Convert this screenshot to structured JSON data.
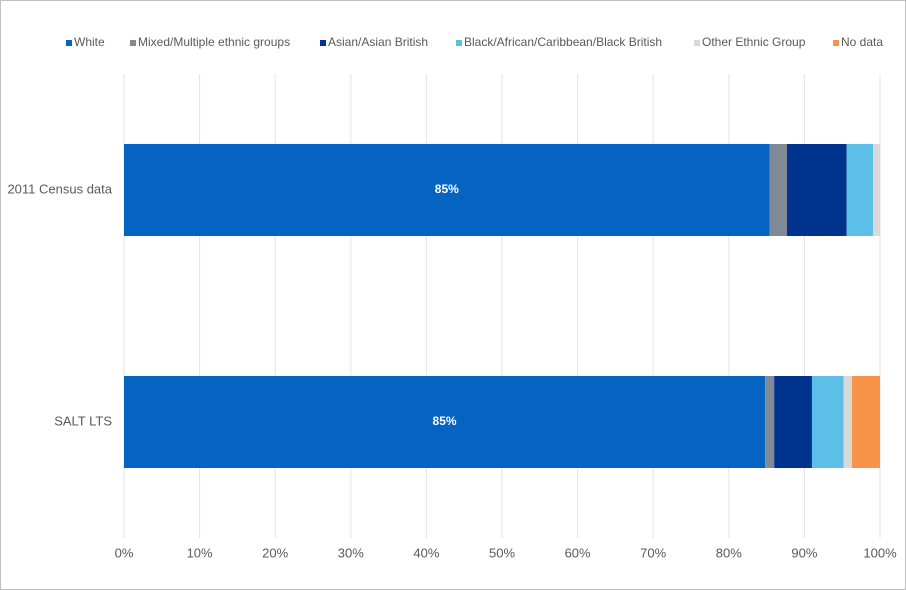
{
  "chart_data": {
    "type": "stacked-bar-horizontal",
    "categories": [
      "2011 Census data",
      "SALT LTS"
    ],
    "series": [
      {
        "name": "White",
        "color": "#0563c1",
        "values": [
          85.4,
          84.8
        ],
        "value_labels": [
          "85%",
          "85%"
        ]
      },
      {
        "name": "Mixed/Multiple ethnic groups",
        "color": "#7f8a96",
        "values": [
          2.3,
          1.2
        ]
      },
      {
        "name": "Asian/Asian British",
        "color": "#00338d",
        "values": [
          7.9,
          5.0
        ]
      },
      {
        "name": "Black/African/Caribbean/Black British",
        "color": "#5bbfe8",
        "values": [
          3.5,
          4.2
        ]
      },
      {
        "name": "Other Ethnic Group",
        "color": "#d9d9d9",
        "values": [
          0.9,
          1.1
        ]
      },
      {
        "name": "No data",
        "color": "#f7944a",
        "values": [
          0,
          3.7
        ]
      }
    ],
    "xlim": [
      0,
      100
    ],
    "xticks": [
      {
        "value": 0,
        "label": "0%"
      },
      {
        "value": 10,
        "label": "10%"
      },
      {
        "value": 20,
        "label": "20%"
      },
      {
        "value": 30,
        "label": "30%"
      },
      {
        "value": 40,
        "label": "40%"
      },
      {
        "value": 50,
        "label": "50%"
      },
      {
        "value": 60,
        "label": "60%"
      },
      {
        "value": 70,
        "label": "70%"
      },
      {
        "value": 80,
        "label": "80%"
      },
      {
        "value": 90,
        "label": "90%"
      },
      {
        "value": 100,
        "label": "100%"
      }
    ],
    "grid": true,
    "legend": "top"
  }
}
